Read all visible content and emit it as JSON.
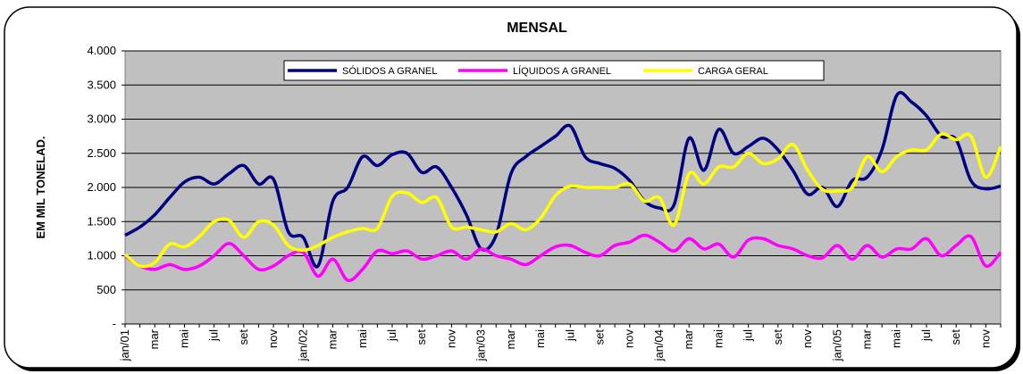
{
  "chart_data": {
    "type": "line",
    "title": "MENSAL",
    "y_label": "EM MIL TONELAD.",
    "categories": [
      "jan/01",
      null,
      "mar",
      null,
      "mai",
      null,
      "jul",
      null,
      "set",
      null,
      "nov",
      null,
      "jan/02",
      null,
      "mar",
      null,
      "mai",
      null,
      "jul",
      null,
      "set",
      null,
      "nov",
      null,
      "jan/03",
      null,
      "mar",
      null,
      "mai",
      null,
      "jul",
      null,
      "set",
      null,
      "nov",
      null,
      "jan/04",
      null,
      "mar",
      null,
      "mai",
      null,
      "jul",
      null,
      "set",
      null,
      "nov",
      null,
      "jan/05",
      null,
      "mar",
      null,
      "mai",
      null,
      "jul",
      null,
      "set",
      null,
      "nov",
      null
    ],
    "series": [
      {
        "name": "SÓLIDOS A GRANEL",
        "color": "#000080",
        "values": [
          1300,
          1420,
          1600,
          1850,
          2080,
          2150,
          2050,
          2200,
          2320,
          2050,
          2120,
          1350,
          1270,
          850,
          1800,
          2000,
          2450,
          2320,
          2480,
          2500,
          2220,
          2300,
          2000,
          1600,
          1100,
          1300,
          2200,
          2450,
          2600,
          2750,
          2900,
          2450,
          2350,
          2280,
          2100,
          1800,
          1700,
          1750,
          2720,
          2250,
          2850,
          2500,
          2600,
          2720,
          2550,
          2250,
          1900,
          2000,
          1720,
          2100,
          2150,
          2550,
          3350,
          3250,
          3050,
          2750,
          2700,
          2100,
          1980,
          2020
        ]
      },
      {
        "name": "LÍQUIDOS A GRANEL",
        "color": "#ff00ff",
        "values": [
          1000,
          850,
          800,
          870,
          800,
          850,
          1000,
          1180,
          1000,
          800,
          850,
          1000,
          1050,
          700,
          950,
          640,
          800,
          1070,
          1030,
          1070,
          950,
          1000,
          1070,
          950,
          1100,
          1000,
          950,
          870,
          1000,
          1130,
          1150,
          1050,
          1000,
          1150,
          1200,
          1300,
          1200,
          1070,
          1250,
          1100,
          1170,
          980,
          1230,
          1250,
          1150,
          1100,
          1000,
          970,
          1150,
          950,
          1150,
          980,
          1100,
          1100,
          1250,
          1000,
          1150,
          1280,
          850,
          1050
        ]
      },
      {
        "name": "CARGA GERAL",
        "color": "#ffff00",
        "values": [
          1020,
          850,
          900,
          1170,
          1130,
          1280,
          1500,
          1520,
          1270,
          1500,
          1450,
          1150,
          1080,
          1150,
          1270,
          1350,
          1400,
          1400,
          1870,
          1920,
          1780,
          1850,
          1420,
          1420,
          1380,
          1350,
          1470,
          1380,
          1550,
          1880,
          2020,
          2000,
          2000,
          2000,
          2050,
          1800,
          1850,
          1450,
          2200,
          2050,
          2300,
          2300,
          2500,
          2350,
          2420,
          2630,
          2250,
          1970,
          1950,
          2000,
          2450,
          2230,
          2450,
          2550,
          2550,
          2780,
          2700,
          2750,
          2150,
          2600
        ]
      }
    ],
    "ylim": [
      0,
      4000
    ],
    "yticks": [
      {
        "value": 0,
        "label": "-"
      },
      500,
      {
        "value": 1000,
        "label": "1.000"
      },
      {
        "value": 1500,
        "label": "1.500"
      },
      {
        "value": 2000,
        "label": "2.000"
      },
      {
        "value": 2500,
        "label": "2.500"
      },
      {
        "value": 3000,
        "label": "3.000"
      },
      {
        "value": 3500,
        "label": "3.500"
      },
      {
        "value": 4000,
        "label": "4.000"
      }
    ],
    "grid": true,
    "legend": "top"
  }
}
